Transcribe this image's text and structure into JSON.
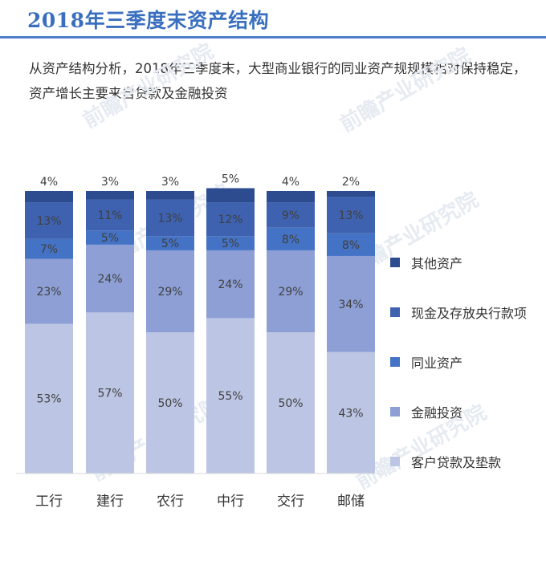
{
  "header": {
    "title": "2018年三季度末资产结构",
    "subtitle": "从资产结构分析，2018年三季度末，大型商业银行的同业资产规规模相对保持稳定，资产增长主要来自贷款及金融投资"
  },
  "watermark": "前瞻产业研究院",
  "colors": {
    "客户贷款及垫款": "#bcc6e4",
    "金融投资": "#8d9fd5",
    "同业资产": "#4472c4",
    "现金及存放央行款项": "#3e62b0",
    "其他资产": "#2c4c8f",
    "title": "#3a6fbf"
  },
  "chart_data": {
    "type": "bar",
    "stacked": true,
    "percent": true,
    "categories": [
      "工行",
      "建行",
      "农行",
      "中行",
      "交行",
      "邮储"
    ],
    "series": [
      {
        "name": "客户贷款及垫款",
        "values": [
          53,
          57,
          50,
          55,
          50,
          43
        ]
      },
      {
        "name": "金融投资",
        "values": [
          23,
          24,
          29,
          24,
          29,
          34
        ]
      },
      {
        "name": "同业资产",
        "values": [
          7,
          5,
          5,
          5,
          8,
          8
        ]
      },
      {
        "name": "现金及存放央行款项",
        "values": [
          13,
          11,
          13,
          12,
          9,
          13
        ]
      },
      {
        "name": "其他资产",
        "values": [
          4,
          3,
          3,
          5,
          4,
          2
        ]
      }
    ],
    "legend_order": [
      "其他资产",
      "现金及存放央行款项",
      "同业资产",
      "金融投资",
      "客户贷款及垫款"
    ],
    "legend_position": "right",
    "ylim": [
      0,
      100
    ],
    "grid": false
  }
}
